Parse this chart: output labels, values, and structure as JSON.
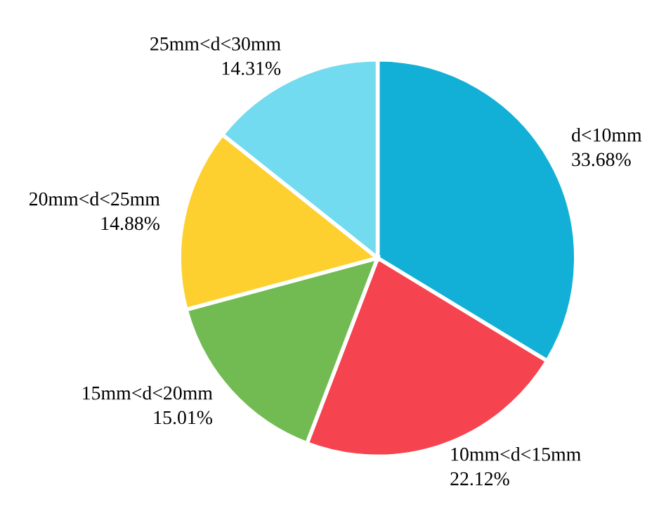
{
  "chart_data": {
    "type": "pie",
    "categories": [
      "d<10mm",
      "10mm<d<15mm",
      "15mm<d<20mm",
      "20mm<d<25mm",
      "25mm<d<30mm"
    ],
    "values": [
      33.68,
      22.12,
      15.01,
      14.88,
      14.31
    ],
    "value_labels": [
      "33.68%",
      "22.12%",
      "15.01%",
      "14.88%",
      "14.31%"
    ],
    "colors": [
      "#12b0d6",
      "#f5444f",
      "#72bb52",
      "#fdd02f",
      "#72dbef"
    ],
    "legend": false
  }
}
